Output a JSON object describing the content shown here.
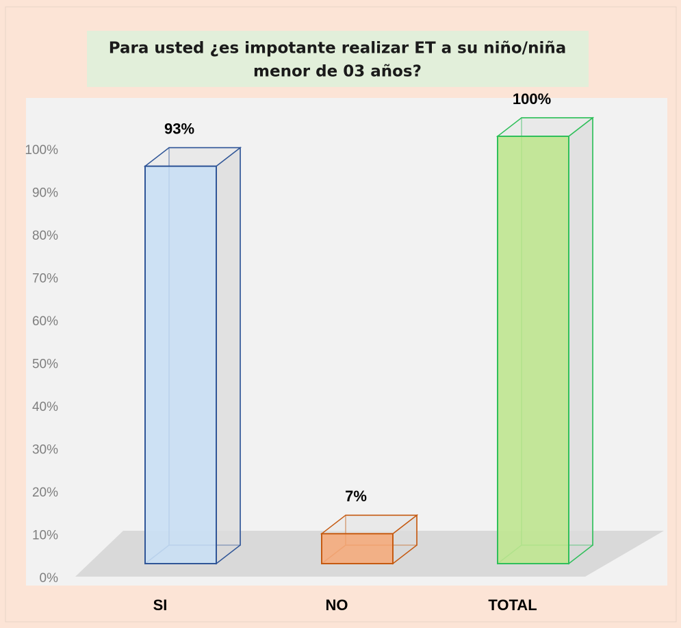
{
  "chart_data": {
    "type": "bar3d",
    "title": [
      "Para usted ¿es impotante realizar ET a su niño/niña",
      "menor de 03 años?"
    ],
    "categories": [
      "SI",
      "NO",
      "TOTAL"
    ],
    "values": [
      93,
      7,
      100
    ],
    "value_labels": [
      "93%",
      "7%",
      "100%"
    ],
    "colors": [
      {
        "fill": "#c9dff4",
        "stroke": "#2f5597"
      },
      {
        "fill": "#f4ab7c",
        "stroke": "#c55a11"
      },
      {
        "fill": "#bfe690",
        "stroke": "#2fbf5a"
      }
    ],
    "ylim": [
      0,
      100
    ],
    "yticks": [
      {
        "value": 0,
        "label": "0%"
      },
      {
        "value": 10,
        "label": "10%"
      },
      {
        "value": 20,
        "label": "20%"
      },
      {
        "value": 30,
        "label": "30%"
      },
      {
        "value": 40,
        "label": "40%"
      },
      {
        "value": 50,
        "label": "50%"
      },
      {
        "value": 60,
        "label": "60%"
      },
      {
        "value": 70,
        "label": "70%"
      },
      {
        "value": 80,
        "label": "80%"
      },
      {
        "value": 90,
        "label": "90%"
      },
      {
        "value": 100,
        "label": "100%"
      }
    ],
    "grid": false
  }
}
